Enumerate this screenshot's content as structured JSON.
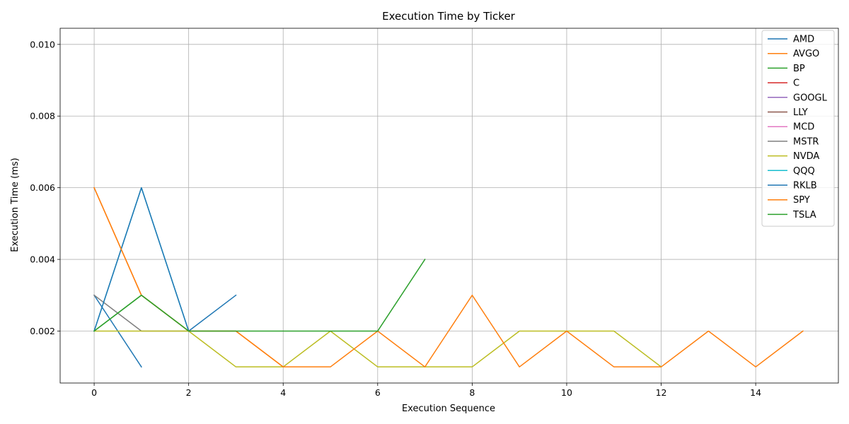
{
  "chart_data": {
    "type": "line",
    "title": "Execution Time by Ticker",
    "xlabel": "Execution Sequence",
    "ylabel": "Execution Time (ms)",
    "xlim": [
      -0.72,
      15.75
    ],
    "ylim": [
      0.00055,
      0.01045
    ],
    "xticks": [
      0,
      2,
      4,
      6,
      8,
      10,
      12,
      14
    ],
    "yticks": [
      0.002,
      0.004,
      0.006,
      0.008,
      0.01
    ],
    "ytick_labels": [
      "0.002",
      "0.004",
      "0.006",
      "0.008",
      "0.010"
    ],
    "grid": true,
    "legend_position": "top-right",
    "series": [
      {
        "name": "AMD",
        "color": "#1f77b4",
        "x": [
          0,
          1
        ],
        "y": [
          0.003,
          0.001
        ]
      },
      {
        "name": "AVGO",
        "color": "#ff7f0e",
        "x": [
          0,
          1,
          2,
          3,
          4
        ],
        "y": [
          0.006,
          0.003,
          0.002,
          0.002,
          0.001
        ]
      },
      {
        "name": "BP",
        "color": "#2ca02c",
        "x": [
          0,
          1,
          2
        ],
        "y": [
          0.002,
          0.003,
          0.002
        ]
      },
      {
        "name": "C",
        "color": "#d62728",
        "x": [],
        "y": []
      },
      {
        "name": "GOOGL",
        "color": "#9467bd",
        "x": [],
        "y": []
      },
      {
        "name": "LLY",
        "color": "#8c564b",
        "x": [],
        "y": []
      },
      {
        "name": "MCD",
        "color": "#e377c2",
        "x": [],
        "y": []
      },
      {
        "name": "MSTR",
        "color": "#7f7f7f",
        "x": [
          0,
          1,
          2
        ],
        "y": [
          0.003,
          0.002,
          0.002
        ]
      },
      {
        "name": "NVDA",
        "color": "#bcbd22",
        "x": [
          0,
          1,
          2,
          3,
          4,
          5,
          6,
          7,
          8,
          9,
          10,
          11,
          12
        ],
        "y": [
          0.002,
          0.002,
          0.002,
          0.001,
          0.001,
          0.002,
          0.001,
          0.001,
          0.001,
          0.002,
          0.002,
          0.002,
          0.001
        ]
      },
      {
        "name": "QQQ",
        "color": "#17becf",
        "x": [
          0,
          1,
          2
        ],
        "y": [
          0.002,
          0.006,
          0.002
        ]
      },
      {
        "name": "RKLB",
        "color": "#1f77b4",
        "x": [
          0,
          1,
          2,
          3
        ],
        "y": [
          0.002,
          0.006,
          0.002,
          0.003
        ]
      },
      {
        "name": "SPY",
        "color": "#ff7f0e",
        "x": [
          0,
          1,
          2,
          3,
          4,
          5,
          6,
          7,
          8,
          9,
          10,
          11,
          12,
          13,
          14,
          15
        ],
        "y": [
          0.006,
          0.003,
          0.002,
          0.002,
          0.001,
          0.001,
          0.002,
          0.001,
          0.003,
          0.001,
          0.002,
          0.001,
          0.001,
          0.002,
          0.001,
          0.002
        ]
      },
      {
        "name": "TSLA",
        "color": "#2ca02c",
        "x": [
          0,
          1,
          2,
          3,
          4,
          5,
          6,
          7
        ],
        "y": [
          0.002,
          0.003,
          0.002,
          0.002,
          0.002,
          0.002,
          0.002,
          0.004
        ]
      }
    ]
  }
}
